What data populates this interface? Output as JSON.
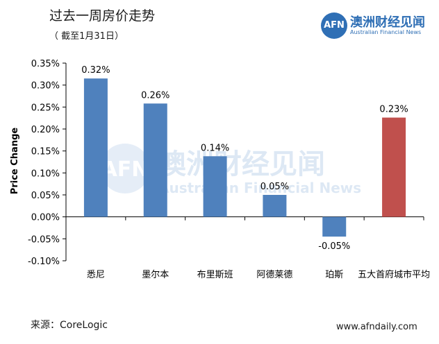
{
  "header": {
    "title": "过去一周房价走势",
    "subtitle": "（ 截至1月31日）"
  },
  "brand": {
    "logo_text": "AFN",
    "name_cn": "澳洲财经见闻",
    "name_en": "Australian Financial News",
    "color": "#2f6fb5"
  },
  "watermark": {
    "logo_text": "AFN",
    "name_cn": "澳洲财经见闻",
    "name_en": "Australian Financial News"
  },
  "footer": {
    "source": "来源：CoreLogic",
    "site": "www.afndaily.com"
  },
  "chart_data": {
    "type": "bar",
    "ylabel": "Price Change",
    "ylim": [
      -0.1,
      0.35
    ],
    "yticks": [
      0.35,
      0.3,
      0.25,
      0.2,
      0.15,
      0.1,
      0.05,
      0.0,
      -0.05,
      -0.1
    ],
    "ytick_labels": [
      "0.35%",
      "0.30%",
      "0.25%",
      "0.20%",
      "0.15%",
      "0.10%",
      "0.05%",
      "0.00%",
      "-0.05%",
      "-0.10%"
    ],
    "categories": [
      "悉尼",
      "墨尔本",
      "布里斯班",
      "阿德莱德",
      "珀斯",
      "五大首府城市平均"
    ],
    "values": [
      0.315,
      0.258,
      0.138,
      0.05,
      -0.045,
      0.226
    ],
    "data_labels": [
      "0.32%",
      "0.26%",
      "0.14%",
      "0.05%",
      "-0.05%",
      "0.23%"
    ],
    "colors": [
      "#4f81bd",
      "#4f81bd",
      "#4f81bd",
      "#4f81bd",
      "#4f81bd",
      "#c0504d"
    ],
    "grid": false,
    "legend": "none"
  }
}
